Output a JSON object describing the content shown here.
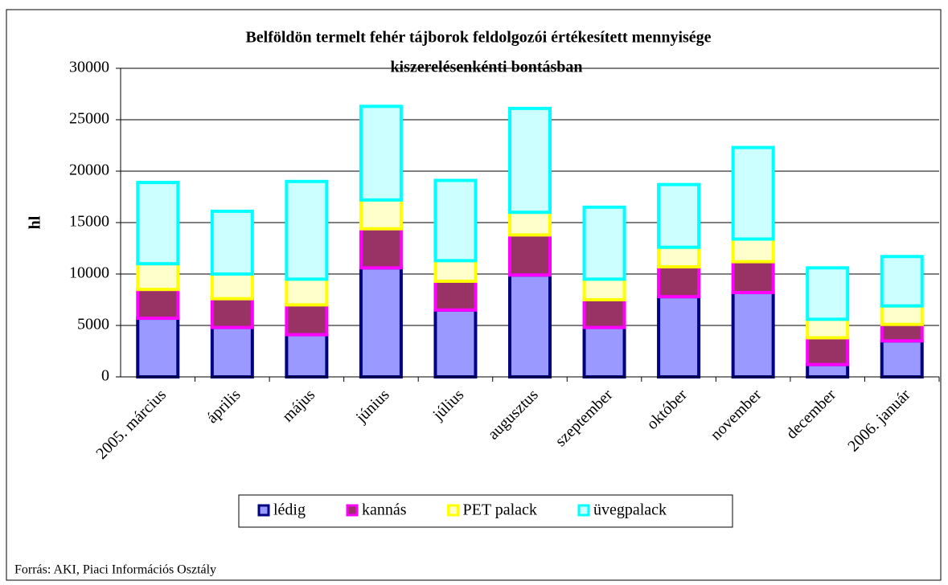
{
  "chart_data": {
    "type": "stacked_bar",
    "title": [
      "Belföldön termelt fehér tájborok feldolgozói értékesített mennyisége",
      "kiszerelésenkénti bontásban"
    ],
    "ylabel": "hl",
    "source": "Forrás: AKI, Piaci Információs Osztály",
    "categories": [
      "2005. március",
      "április",
      "május",
      "június",
      "július",
      "augusztus",
      "szeptember",
      "október",
      "november",
      "december",
      "2006. január"
    ],
    "series": [
      {
        "name": "lédig",
        "color": "#9999ff",
        "stroke": "#000080",
        "values": [
          5700,
          4800,
          4100,
          10600,
          6500,
          9900,
          4800,
          7800,
          8200,
          1200,
          3500
        ]
      },
      {
        "name": "kannás",
        "color": "#993366",
        "stroke": "#ff00ff",
        "values": [
          2800,
          2800,
          2900,
          3800,
          2800,
          3900,
          2700,
          2900,
          3000,
          2600,
          1600
        ]
      },
      {
        "name": "PET palack",
        "color": "#ffffcc",
        "stroke": "#ffff00",
        "values": [
          2500,
          2400,
          2500,
          2800,
          2000,
          2200,
          2000,
          1900,
          2200,
          1800,
          1800
        ]
      },
      {
        "name": "üvegpalack",
        "color": "#ccffff",
        "stroke": "#00ffff",
        "values": [
          7900,
          6100,
          9500,
          9100,
          7800,
          10100,
          7000,
          6100,
          8900,
          5000,
          4800
        ]
      }
    ],
    "ylim": [
      0,
      30000
    ],
    "yticks": [
      0,
      5000,
      10000,
      15000,
      20000,
      25000,
      30000
    ],
    "grid": true,
    "legend": "bottom"
  }
}
